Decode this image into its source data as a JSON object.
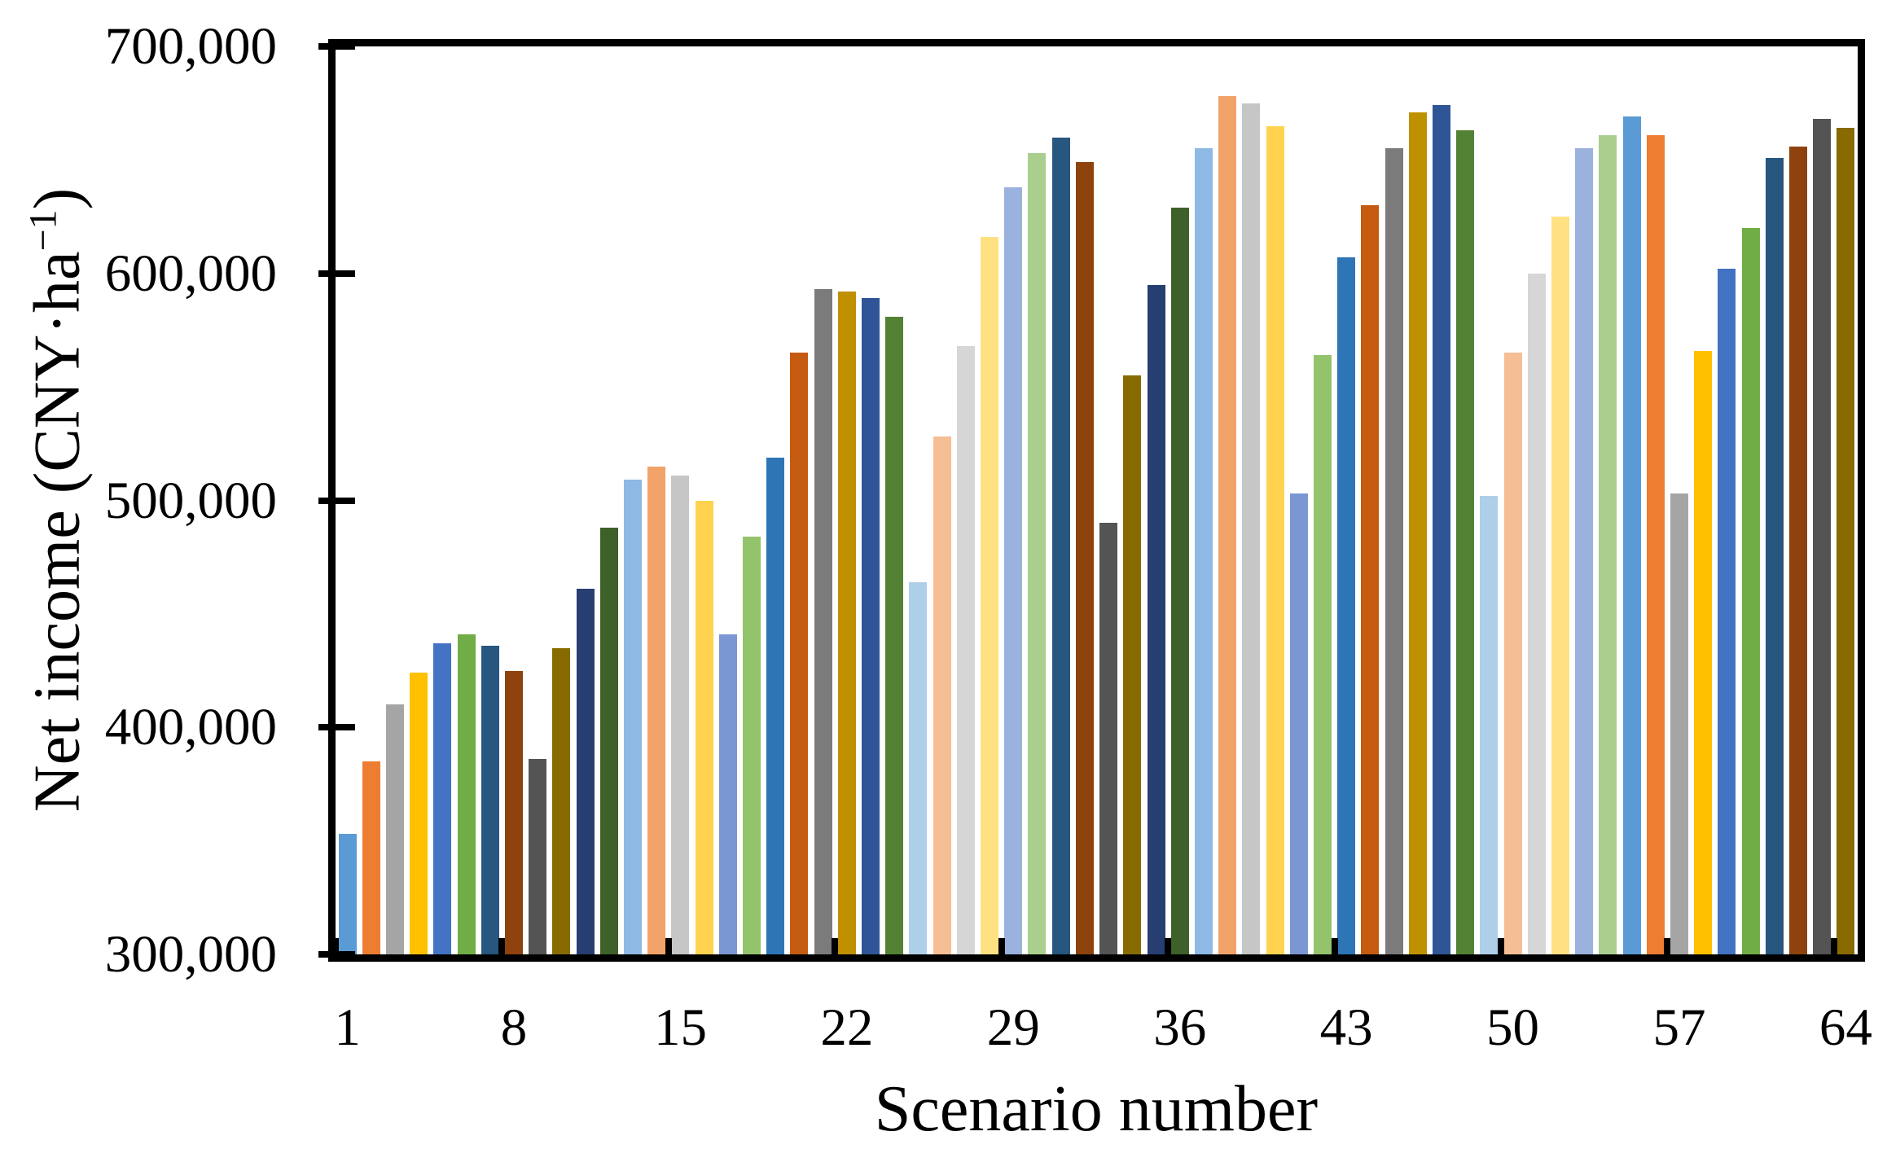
{
  "chart_data": {
    "type": "bar",
    "title": "",
    "xlabel": "Scenario number",
    "ylabel": "Net income (CNY·ha⁻¹)",
    "ylabel_parts": {
      "pre": "Net income (CNY·ha",
      "sup": "−1",
      "post": ")"
    },
    "categories": [
      1,
      2,
      3,
      4,
      5,
      6,
      7,
      8,
      9,
      10,
      11,
      12,
      13,
      14,
      15,
      16,
      17,
      18,
      19,
      20,
      21,
      22,
      23,
      24,
      25,
      26,
      27,
      28,
      29,
      30,
      31,
      32,
      33,
      34,
      35,
      36,
      37,
      38,
      39,
      40,
      41,
      42,
      43,
      44,
      45,
      46,
      47,
      48,
      49,
      50,
      51,
      52,
      53,
      54,
      55,
      56,
      57,
      58,
      59,
      60,
      61,
      62,
      63,
      64
    ],
    "values": [
      353000,
      385000,
      410000,
      424000,
      437000,
      441000,
      436000,
      425000,
      386000,
      435000,
      461000,
      488000,
      509000,
      515000,
      511000,
      500000,
      441000,
      484000,
      519000,
      565000,
      593000,
      592000,
      589000,
      581000,
      464000,
      528000,
      568000,
      616000,
      638000,
      653000,
      660000,
      649000,
      490000,
      555000,
      595000,
      629000,
      655000,
      678000,
      675000,
      665000,
      503000,
      564000,
      607000,
      630000,
      655000,
      671000,
      674000,
      663000,
      502000,
      565000,
      600000,
      625000,
      655000,
      661000,
      669000,
      661000,
      503000,
      566000,
      602000,
      620000,
      651000,
      656000,
      668000,
      664000
    ],
    "bar_colors": [
      "#5B9BD5",
      "#ED7D31",
      "#A5A5A5",
      "#FFC000",
      "#4472C4",
      "#70AD47",
      "#27567F",
      "#8E430E",
      "#545454",
      "#876A00",
      "#263E72",
      "#3D6128",
      "#8DB9E4",
      "#F1A369",
      "#C6C6C6",
      "#FFD34F",
      "#7B97D3",
      "#93C36B",
      "#2E75B6",
      "#C55A11",
      "#7B7B7B",
      "#BF9000",
      "#2F5597",
      "#548235",
      "#AECFE9",
      "#F6BE95",
      "#D6D6D6",
      "#FFE182",
      "#9BB1DE",
      "#A9CE8E",
      "#27567F",
      "#8E430E",
      "#545454",
      "#876A00",
      "#263E72",
      "#3D6128",
      "#8DB9E4",
      "#F1A369",
      "#C6C6C6",
      "#FFD34F",
      "#7B97D3",
      "#93C36B",
      "#2E75B6",
      "#C55A11",
      "#7B7B7B",
      "#BF9000",
      "#2F5597",
      "#548235",
      "#AECFE9",
      "#F6BE95",
      "#D6D6D6",
      "#FFE182",
      "#9BB1DE",
      "#A9CE8E",
      "#5B9BD5",
      "#ED7D31",
      "#A5A5A5",
      "#FFC000",
      "#4472C4",
      "#70AD47",
      "#27567F",
      "#8E430E",
      "#545454",
      "#876A00"
    ],
    "ylim": [
      300000,
      700000
    ],
    "ytick_interval": 100000,
    "yticks": [
      {
        "value": 300000,
        "label": "300,000"
      },
      {
        "value": 400000,
        "label": "400,000"
      },
      {
        "value": 500000,
        "label": "500,000"
      },
      {
        "value": 600000,
        "label": "600,000"
      },
      {
        "value": 700000,
        "label": "700,000"
      }
    ],
    "xtick_labels": [
      1,
      8,
      15,
      22,
      29,
      36,
      43,
      50,
      57,
      64
    ],
    "xtick_boundary_interval": 7,
    "grid": "off",
    "legend": "none",
    "axis_color": "#000000",
    "background_color": "#FFFFFF"
  }
}
